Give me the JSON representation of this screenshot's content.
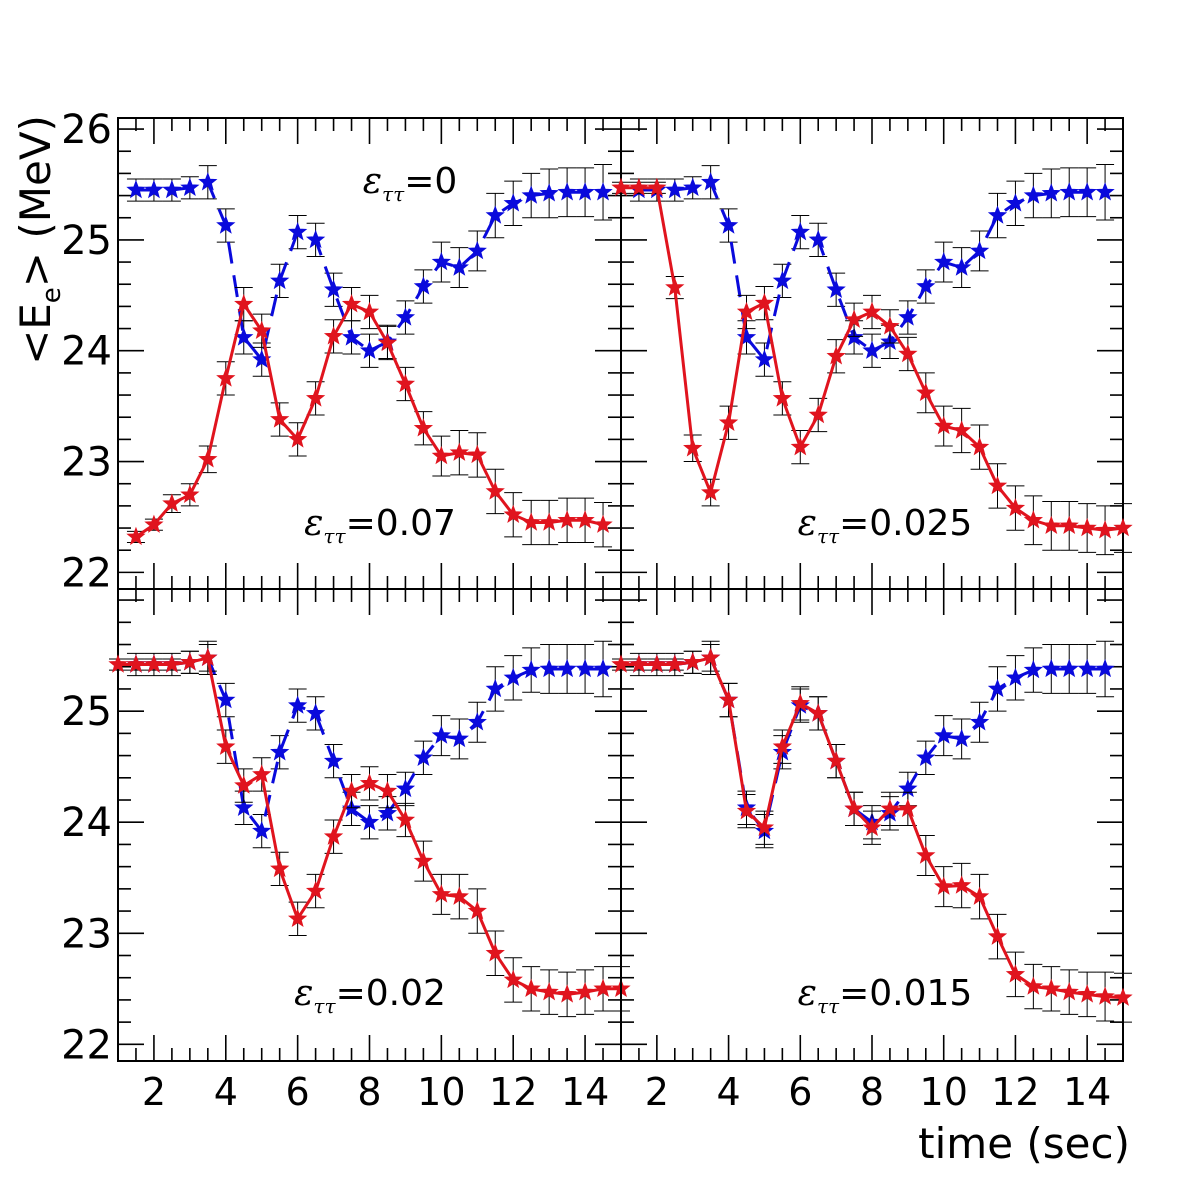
{
  "figure": {
    "ylabel": "<E",
    "ylabel_sub": "e",
    "ylabel_rest": "> (MeV)",
    "xlabel": "time (sec)",
    "colors": {
      "blue": "#0a0adc",
      "red": "#e0141e",
      "axis": "#000000",
      "errorbar": "#000000"
    }
  },
  "chart_data": [
    {
      "type": "line",
      "panel": "top-left",
      "annotations": [
        {
          "prefix": "ε",
          "sub": "ττ",
          "text": "=0",
          "color": "blue"
        },
        {
          "prefix": "ε",
          "sub": "ττ",
          "text": "=0.07",
          "color": "black"
        }
      ],
      "xlim": [
        1,
        15
      ],
      "ylim": [
        21.85,
        26.1
      ],
      "xticks": [
        2,
        4,
        6,
        8,
        10,
        12,
        14
      ],
      "xtick_labels": [],
      "yticks": [
        22,
        23,
        24,
        25,
        26
      ],
      "ytick_labels": [
        "22",
        "23",
        "24",
        "25",
        "26"
      ],
      "series": [
        {
          "color": "blue",
          "style": "dashed",
          "marker": "star",
          "x": [
            1.5,
            2,
            2.5,
            3,
            3.5,
            4,
            4.5,
            5,
            5.5,
            6,
            6.5,
            7,
            7.5,
            8,
            8.5,
            9,
            9.5,
            10,
            10.5,
            11,
            11.5,
            12,
            12.5,
            13,
            13.5,
            14,
            14.5
          ],
          "y": [
            25.45,
            25.45,
            25.45,
            25.47,
            25.52,
            25.13,
            24.12,
            23.92,
            24.63,
            25.07,
            25.0,
            24.55,
            24.12,
            24.0,
            24.08,
            24.3,
            24.58,
            24.8,
            24.75,
            24.9,
            25.22,
            25.33,
            25.4,
            25.42,
            25.43,
            25.43,
            25.43
          ],
          "err": [
            0.1,
            0.1,
            0.1,
            0.1,
            0.15,
            0.15,
            0.15,
            0.15,
            0.15,
            0.15,
            0.15,
            0.15,
            0.15,
            0.15,
            0.15,
            0.15,
            0.15,
            0.18,
            0.18,
            0.18,
            0.2,
            0.2,
            0.2,
            0.22,
            0.22,
            0.22,
            0.25
          ]
        },
        {
          "color": "red",
          "style": "solid",
          "marker": "star",
          "x": [
            1.5,
            2,
            2.5,
            3,
            3.5,
            4,
            4.5,
            5,
            5.5,
            6,
            6.5,
            7,
            7.5,
            8,
            8.5,
            9,
            9.5,
            10,
            10.5,
            11,
            11.5,
            12,
            12.5,
            13,
            13.5,
            14,
            14.5
          ],
          "y": [
            22.32,
            22.43,
            22.62,
            22.7,
            23.02,
            23.75,
            24.42,
            24.18,
            23.38,
            23.2,
            23.57,
            24.13,
            24.42,
            24.35,
            24.07,
            23.7,
            23.3,
            23.05,
            23.08,
            23.06,
            22.73,
            22.52,
            22.45,
            22.45,
            22.47,
            22.47,
            22.43
          ],
          "err": [
            0.05,
            0.05,
            0.08,
            0.1,
            0.12,
            0.15,
            0.15,
            0.15,
            0.15,
            0.15,
            0.15,
            0.15,
            0.15,
            0.15,
            0.15,
            0.15,
            0.15,
            0.18,
            0.2,
            0.2,
            0.2,
            0.2,
            0.2,
            0.2,
            0.2,
            0.2,
            0.2
          ]
        }
      ]
    },
    {
      "type": "line",
      "panel": "top-right",
      "annotations": [
        {
          "prefix": "ε",
          "sub": "ττ",
          "text": "=0.025",
          "color": "black"
        }
      ],
      "xlim": [
        1,
        15
      ],
      "ylim": [
        21.85,
        26.1
      ],
      "xticks": [
        2,
        4,
        6,
        8,
        10,
        12,
        14
      ],
      "xtick_labels": [],
      "yticks": [
        22,
        23,
        24,
        25,
        26
      ],
      "ytick_labels": [],
      "series": [
        {
          "color": "blue",
          "style": "dashed",
          "marker": "star",
          "x": [
            1.5,
            2,
            2.5,
            3,
            3.5,
            4,
            4.5,
            5,
            5.5,
            6,
            6.5,
            7,
            7.5,
            8,
            8.5,
            9,
            9.5,
            10,
            10.5,
            11,
            11.5,
            12,
            12.5,
            13,
            13.5,
            14,
            14.5
          ],
          "y": [
            25.45,
            25.45,
            25.45,
            25.47,
            25.52,
            25.13,
            24.12,
            23.92,
            24.63,
            25.07,
            25.0,
            24.55,
            24.12,
            24.0,
            24.08,
            24.3,
            24.58,
            24.8,
            24.75,
            24.9,
            25.22,
            25.33,
            25.4,
            25.42,
            25.43,
            25.43,
            25.43
          ],
          "err": [
            0.1,
            0.1,
            0.1,
            0.1,
            0.15,
            0.15,
            0.15,
            0.15,
            0.15,
            0.15,
            0.15,
            0.15,
            0.15,
            0.15,
            0.15,
            0.15,
            0.15,
            0.18,
            0.18,
            0.18,
            0.2,
            0.2,
            0.2,
            0.22,
            0.22,
            0.22,
            0.25
          ]
        },
        {
          "color": "red",
          "style": "solid",
          "marker": "star",
          "x": [
            1,
            1.5,
            2,
            2.5,
            3,
            3.5,
            4,
            4.5,
            5,
            5.5,
            6,
            6.5,
            7,
            7.5,
            8,
            8.5,
            9,
            9.5,
            10,
            10.5,
            11,
            11.5,
            12,
            12.5,
            13,
            13.5,
            14,
            14.5,
            15
          ],
          "y": [
            25.47,
            25.47,
            25.47,
            24.57,
            23.12,
            22.72,
            23.35,
            24.35,
            24.43,
            23.57,
            23.13,
            23.42,
            23.95,
            24.28,
            24.35,
            24.22,
            23.97,
            23.62,
            23.32,
            23.28,
            23.13,
            22.78,
            22.58,
            22.47,
            22.42,
            22.42,
            22.4,
            22.38,
            22.4
          ],
          "err": [
            0.05,
            0.05,
            0.05,
            0.1,
            0.12,
            0.12,
            0.15,
            0.15,
            0.15,
            0.15,
            0.15,
            0.15,
            0.15,
            0.15,
            0.15,
            0.15,
            0.15,
            0.18,
            0.18,
            0.2,
            0.2,
            0.2,
            0.2,
            0.22,
            0.22,
            0.22,
            0.22,
            0.22,
            0.22
          ]
        }
      ]
    },
    {
      "type": "line",
      "panel": "bottom-left",
      "annotations": [
        {
          "prefix": "ε",
          "sub": "ττ",
          "text": "=0.02",
          "color": "black"
        }
      ],
      "xlim": [
        1,
        15
      ],
      "ylim": [
        21.85,
        26.1
      ],
      "xticks": [
        2,
        4,
        6,
        8,
        10,
        12,
        14
      ],
      "xtick_labels": [
        "2",
        "4",
        "6",
        "8",
        "10",
        "12",
        "14"
      ],
      "yticks": [
        22,
        23,
        24,
        25
      ],
      "ytick_labels": [
        "22",
        "23",
        "24",
        "25"
      ],
      "series": [
        {
          "color": "blue",
          "style": "dashed",
          "marker": "star",
          "x": [
            1.5,
            2,
            2.5,
            3,
            3.5,
            4,
            4.5,
            5,
            5.5,
            6,
            6.5,
            7,
            7.5,
            8,
            8.5,
            9,
            9.5,
            10,
            10.5,
            11,
            11.5,
            12,
            12.5,
            13,
            13.5,
            14,
            14.5
          ],
          "y": [
            25.42,
            25.42,
            25.42,
            25.44,
            25.48,
            25.1,
            24.13,
            23.92,
            24.63,
            25.05,
            24.98,
            24.55,
            24.12,
            24.0,
            24.08,
            24.3,
            24.58,
            24.78,
            24.75,
            24.9,
            25.2,
            25.3,
            25.37,
            25.38,
            25.38,
            25.38,
            25.38
          ],
          "err": [
            0.1,
            0.1,
            0.1,
            0.1,
            0.15,
            0.15,
            0.15,
            0.15,
            0.15,
            0.15,
            0.15,
            0.15,
            0.15,
            0.15,
            0.15,
            0.15,
            0.15,
            0.18,
            0.18,
            0.18,
            0.2,
            0.2,
            0.2,
            0.22,
            0.22,
            0.22,
            0.25
          ]
        },
        {
          "color": "red",
          "style": "solid",
          "marker": "star",
          "x": [
            1,
            1.5,
            2,
            2.5,
            3,
            3.5,
            4,
            4.5,
            5,
            5.5,
            6,
            6.5,
            7,
            7.5,
            8,
            8.5,
            9,
            9.5,
            10,
            10.5,
            11,
            11.5,
            12,
            12.5,
            13,
            13.5,
            14,
            14.5,
            15
          ],
          "y": [
            25.42,
            25.42,
            25.42,
            25.42,
            25.44,
            25.48,
            24.68,
            24.33,
            24.43,
            23.58,
            23.13,
            23.38,
            23.87,
            24.28,
            24.35,
            24.28,
            24.02,
            23.65,
            23.35,
            23.33,
            23.2,
            22.82,
            22.58,
            22.5,
            22.47,
            22.45,
            22.47,
            22.5,
            22.5
          ],
          "err": [
            0.05,
            0.05,
            0.05,
            0.05,
            0.1,
            0.12,
            0.15,
            0.15,
            0.15,
            0.15,
            0.15,
            0.15,
            0.15,
            0.15,
            0.15,
            0.15,
            0.15,
            0.18,
            0.18,
            0.2,
            0.2,
            0.2,
            0.2,
            0.2,
            0.2,
            0.2,
            0.2,
            0.2,
            0.2
          ]
        }
      ]
    },
    {
      "type": "line",
      "panel": "bottom-right",
      "annotations": [
        {
          "prefix": "ε",
          "sub": "ττ",
          "text": "=0.015",
          "color": "black"
        }
      ],
      "xlim": [
        1,
        15
      ],
      "ylim": [
        21.85,
        26.1
      ],
      "xticks": [
        2,
        4,
        6,
        8,
        10,
        12,
        14
      ],
      "xtick_labels": [
        "2",
        "4",
        "6",
        "8",
        "10",
        "12",
        "14"
      ],
      "yticks": [
        22,
        23,
        24,
        25
      ],
      "ytick_labels": [],
      "series": [
        {
          "color": "blue",
          "style": "dashed",
          "marker": "star",
          "x": [
            1.5,
            2,
            2.5,
            3,
            3.5,
            4,
            4.5,
            5,
            5.5,
            6,
            6.5,
            7,
            7.5,
            8,
            8.5,
            9,
            9.5,
            10,
            10.5,
            11,
            11.5,
            12,
            12.5,
            13,
            13.5,
            14,
            14.5
          ],
          "y": [
            25.42,
            25.42,
            25.42,
            25.44,
            25.48,
            25.1,
            24.13,
            23.92,
            24.63,
            25.05,
            24.98,
            24.55,
            24.12,
            24.0,
            24.08,
            24.3,
            24.58,
            24.78,
            24.75,
            24.9,
            25.2,
            25.3,
            25.37,
            25.38,
            25.38,
            25.38,
            25.38
          ],
          "err": [
            0.1,
            0.1,
            0.1,
            0.1,
            0.15,
            0.15,
            0.15,
            0.15,
            0.15,
            0.15,
            0.15,
            0.15,
            0.15,
            0.15,
            0.15,
            0.15,
            0.15,
            0.18,
            0.18,
            0.18,
            0.2,
            0.2,
            0.2,
            0.22,
            0.22,
            0.22,
            0.25
          ]
        },
        {
          "color": "red",
          "style": "solid",
          "marker": "star",
          "x": [
            1,
            1.5,
            2,
            2.5,
            3,
            3.5,
            4,
            4.5,
            5,
            5.5,
            6,
            6.5,
            7,
            7.5,
            8,
            8.5,
            9,
            9.5,
            10,
            10.5,
            11,
            11.5,
            12,
            12.5,
            13,
            13.5,
            14,
            14.5,
            15
          ],
          "y": [
            25.42,
            25.42,
            25.42,
            25.42,
            25.44,
            25.48,
            25.1,
            24.1,
            23.95,
            24.68,
            25.07,
            24.98,
            24.55,
            24.12,
            23.95,
            24.12,
            24.12,
            23.7,
            23.42,
            23.43,
            23.33,
            22.97,
            22.63,
            22.52,
            22.5,
            22.47,
            22.45,
            22.43,
            22.42
          ],
          "err": [
            0.05,
            0.05,
            0.05,
            0.05,
            0.1,
            0.12,
            0.15,
            0.15,
            0.15,
            0.15,
            0.15,
            0.15,
            0.15,
            0.15,
            0.15,
            0.15,
            0.15,
            0.18,
            0.18,
            0.2,
            0.2,
            0.2,
            0.2,
            0.2,
            0.2,
            0.2,
            0.2,
            0.22,
            0.22
          ]
        }
      ]
    }
  ]
}
